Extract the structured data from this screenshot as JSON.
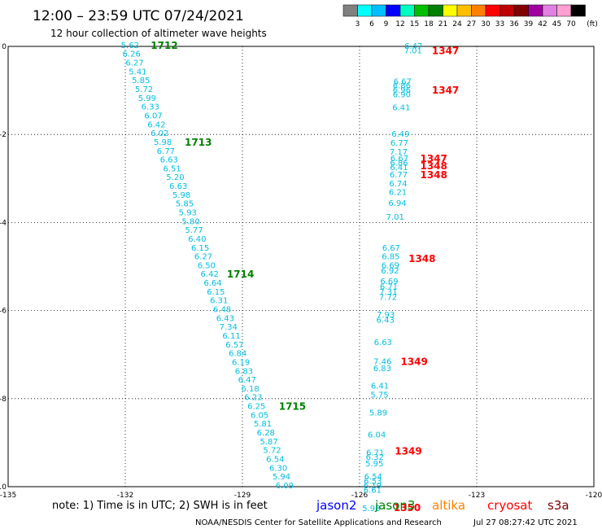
{
  "header": {
    "title": "12:00 – 23:59 UTC 07/24/2021",
    "subtitle": "12 hour collection of altimeter wave heights"
  },
  "legend": {
    "colors": [
      "#808080",
      "#00ffff",
      "#00bfff",
      "#0000ff",
      "#00ffbf",
      "#00bf00",
      "#008000",
      "#ffff00",
      "#ffbf00",
      "#ff8000",
      "#ff0000",
      "#c00000",
      "#800000",
      "#a000a0",
      "#e080e0",
      "#ffa0d0",
      "#000000"
    ],
    "labels": [
      "3",
      "6",
      "9",
      "12",
      "15",
      "18",
      "21",
      "24",
      "27",
      "30",
      "33",
      "36",
      "39",
      "42",
      "45",
      "70"
    ],
    "unit": "(ft)"
  },
  "footer": {
    "note": "note: 1) Time is in UTC; 2) SWH is in feet",
    "credit": "NOAA/NESDIS Center for Satellite Applications and Research",
    "timestamp": "Jul 27 08:27:42 UTC 2021",
    "satellites": [
      {
        "name": "jason2",
        "color": "#0000ff"
      },
      {
        "name": "jason3",
        "color": "#008000"
      },
      {
        "name": "altika",
        "color": "#ff8000"
      },
      {
        "name": "cryosat",
        "color": "#ff0000"
      },
      {
        "name": "s3a",
        "color": "#800000"
      }
    ]
  },
  "chart_data": {
    "type": "scatter",
    "title": "12:00 – 23:59 UTC 07/24/2021",
    "subtitle": "12 hour collection of altimeter wave heights",
    "xlim": [
      -135,
      -120
    ],
    "ylim": [
      -10,
      0
    ],
    "x_ticks": [
      -135,
      -132,
      -129,
      -126,
      -123,
      -120
    ],
    "x_tick_labels": [
      "-135",
      "-132",
      "-129",
      "-126",
      "-123",
      "-120"
    ],
    "y_ticks": [
      0,
      -2,
      -4,
      -6,
      -8,
      -10
    ],
    "y_tick_labels": [
      "0",
      "-2",
      "-4",
      "-6",
      "-8",
      "-10"
    ],
    "grid": true,
    "unit": "ft",
    "series": [
      {
        "name": "jason3",
        "color": "#008000",
        "points": [
          [
            -131.88,
            0.02,
            "5.62"
          ],
          [
            -131.84,
            -0.18,
            "6.26"
          ],
          [
            -131.76,
            -0.38,
            "6.27"
          ],
          [
            -131.68,
            -0.58,
            "5.41"
          ],
          [
            -131.6,
            -0.78,
            "5.85"
          ],
          [
            -131.52,
            -0.98,
            "5.72"
          ],
          [
            -131.44,
            -1.18,
            "5.99"
          ],
          [
            -131.36,
            -1.38,
            "6.33"
          ],
          [
            -131.28,
            -1.58,
            "6.07"
          ],
          [
            -131.2,
            -1.78,
            "6.42"
          ],
          [
            -131.12,
            -1.98,
            "6.02"
          ],
          [
            -131.04,
            -2.18,
            "5.98"
          ],
          [
            -130.96,
            -2.38,
            "6.77"
          ],
          [
            -130.88,
            -2.58,
            "6.63"
          ],
          [
            -130.8,
            -2.78,
            "6.51"
          ],
          [
            -130.72,
            -2.98,
            "5.20"
          ],
          [
            -130.64,
            -3.18,
            "6.63"
          ],
          [
            -130.56,
            -3.38,
            "5.98"
          ],
          [
            -130.48,
            -3.58,
            "5.85"
          ],
          [
            -130.4,
            -3.78,
            "5.93"
          ],
          [
            -130.32,
            -3.98,
            "5.80"
          ],
          [
            -130.24,
            -4.18,
            "5.77"
          ],
          [
            -130.16,
            -4.38,
            "6.40"
          ],
          [
            -130.08,
            -4.58,
            "6.15"
          ],
          [
            -130.0,
            -4.78,
            "6.27"
          ],
          [
            -129.92,
            -4.98,
            "6.50"
          ],
          [
            -129.84,
            -5.18,
            "6.42"
          ],
          [
            -129.76,
            -5.38,
            "6.64"
          ],
          [
            -129.68,
            -5.58,
            "6.15"
          ],
          [
            -129.6,
            -5.78,
            "6.31"
          ],
          [
            -129.52,
            -5.98,
            "6.48"
          ],
          [
            -129.44,
            -6.18,
            "6.43"
          ],
          [
            -129.36,
            -6.38,
            "7.34"
          ],
          [
            -129.28,
            -6.58,
            "6.11"
          ],
          [
            -129.2,
            -6.78,
            "6.57"
          ],
          [
            -129.12,
            -6.98,
            "6.84"
          ],
          [
            -129.04,
            -7.18,
            "6.19"
          ],
          [
            -128.96,
            -7.38,
            "6.83"
          ],
          [
            -128.88,
            -7.58,
            "6.47"
          ],
          [
            -128.8,
            -7.78,
            "6.18"
          ],
          [
            -128.72,
            -7.98,
            "6.23"
          ],
          [
            -128.64,
            -8.18,
            "6.25"
          ],
          [
            -128.56,
            -8.38,
            "6.05"
          ],
          [
            -128.48,
            -8.58,
            "5.81"
          ],
          [
            -128.4,
            -8.78,
            "6.28"
          ],
          [
            -128.32,
            -8.98,
            "5.87"
          ],
          [
            -128.24,
            -9.18,
            "5.72"
          ],
          [
            -128.16,
            -9.38,
            "6.54"
          ],
          [
            -128.08,
            -9.58,
            "6.30"
          ],
          [
            -128.0,
            -9.78,
            "5.94"
          ],
          [
            -127.92,
            -9.98,
            "6.09"
          ]
        ],
        "pass_labels": [
          {
            "label": "1712",
            "x": -131.0,
            "y": 0.02
          },
          {
            "label": "1713",
            "x": -130.13,
            "y": -2.18
          },
          {
            "label": "1714",
            "x": -129.05,
            "y": -5.18
          },
          {
            "label": "1715",
            "x": -127.72,
            "y": -8.18
          }
        ]
      },
      {
        "name": "cryosat",
        "color": "#ff0000",
        "points": [
          [
            -124.62,
            0.0,
            "6.47"
          ],
          [
            -124.63,
            -0.1,
            "7.01"
          ],
          [
            -124.9,
            -0.8,
            "6.67"
          ],
          [
            -124.92,
            -0.9,
            "6.86"
          ],
          [
            -124.92,
            -1.0,
            "6.96"
          ],
          [
            -124.92,
            -1.1,
            "6.90"
          ],
          [
            -124.93,
            -1.4,
            "6.41"
          ],
          [
            -124.95,
            -2.0,
            "6.49"
          ],
          [
            -124.98,
            -2.2,
            "6.77"
          ],
          [
            -125.0,
            -2.4,
            "7.17"
          ],
          [
            -124.98,
            -2.55,
            "6.67"
          ],
          [
            -124.99,
            -2.65,
            "6.86"
          ],
          [
            -124.99,
            -2.75,
            "6.41"
          ],
          [
            -125.0,
            -2.92,
            "6.77"
          ],
          [
            -125.01,
            -3.12,
            "6.74"
          ],
          [
            -125.02,
            -3.32,
            "6.21"
          ],
          [
            -125.03,
            -3.57,
            "6.94"
          ],
          [
            -125.09,
            -3.88,
            "7.01"
          ],
          [
            -125.19,
            -4.58,
            "6.67"
          ],
          [
            -125.2,
            -4.78,
            "6.85"
          ],
          [
            -125.21,
            -4.98,
            "6.69"
          ],
          [
            -125.22,
            -5.1,
            "6.92"
          ],
          [
            -125.24,
            -5.34,
            "6.69"
          ],
          [
            -125.25,
            -5.46,
            "6.71"
          ],
          [
            -125.26,
            -5.58,
            "7.31"
          ],
          [
            -125.27,
            -5.7,
            "7.72"
          ],
          [
            -125.33,
            -6.1,
            "7.93"
          ],
          [
            -125.34,
            -6.22,
            "6.43"
          ],
          [
            -125.4,
            -6.73,
            "6.63"
          ],
          [
            -125.41,
            -7.16,
            "7.46"
          ],
          [
            -125.42,
            -7.32,
            "6.83"
          ],
          [
            -125.48,
            -7.72,
            "6.41"
          ],
          [
            -125.49,
            -7.92,
            "5.75"
          ],
          [
            -125.52,
            -8.33,
            "5.89"
          ],
          [
            -125.56,
            -8.83,
            "6.04"
          ],
          [
            -125.6,
            -9.23,
            "6.71"
          ],
          [
            -125.61,
            -9.33,
            "6.32"
          ],
          [
            -125.62,
            -9.48,
            "5.95"
          ],
          [
            -125.65,
            -9.78,
            "6.54"
          ],
          [
            -125.66,
            -9.88,
            "6.53"
          ],
          [
            -125.67,
            -9.98,
            "6.19"
          ],
          [
            -125.67,
            -10.08,
            "6.61"
          ],
          [
            -125.7,
            -10.5,
            "5.98"
          ]
        ],
        "pass_labels": [
          {
            "label": "1347",
            "x": -123.8,
            "y": -0.1
          },
          {
            "label": "1347",
            "x": -123.8,
            "y": -1.0
          },
          {
            "label": "1347",
            "x": -124.1,
            "y": -2.55
          },
          {
            "label": "1348",
            "x": -124.1,
            "y": -2.72
          },
          {
            "label": "1348",
            "x": -124.1,
            "y": -2.92
          },
          {
            "label": "1348",
            "x": -124.4,
            "y": -4.82
          },
          {
            "label": "1349",
            "x": -124.6,
            "y": -7.16
          },
          {
            "label": "1349",
            "x": -124.75,
            "y": -9.2
          },
          {
            "label": "1350",
            "x": -124.78,
            "y": -10.48
          }
        ]
      }
    ]
  }
}
